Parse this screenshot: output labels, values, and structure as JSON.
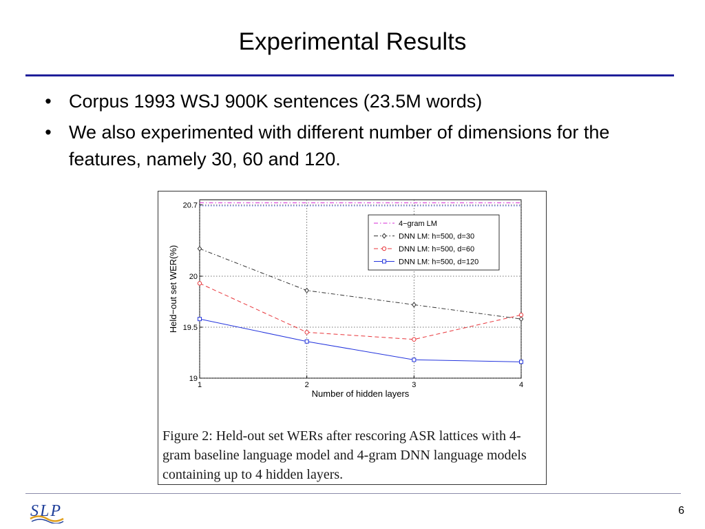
{
  "slide": {
    "title": "Experimental Results",
    "bullets": [
      "Corpus 1993 WSJ 900K sentences (23.5M words)",
      "We also experimented with different number of dimensions for the features, namely 30, 60 and 120."
    ],
    "bullet_symbol": "•",
    "page_number": "6",
    "logo_text": "SLP",
    "accent_color": "#1f1f9a"
  },
  "figure": {
    "caption": "Figure 2: Held-out set WERs after rescoring ASR lattices with 4-gram baseline language model and 4-gram DNN language models containing up to 4 hidden layers."
  },
  "chart_data": {
    "type": "line",
    "title": "",
    "xlabel": "Number of hidden layers",
    "ylabel": "Held−out set WER(%)",
    "xlim": [
      1,
      4
    ],
    "ylim": [
      19,
      20.75
    ],
    "x_ticks": [
      "1",
      "2",
      "3",
      "4"
    ],
    "y_ticks": [
      "19",
      "19.5",
      "20",
      "20.7"
    ],
    "y_tick_values": [
      19,
      19.5,
      20,
      20.7
    ],
    "grid": true,
    "legend_position": "top-right",
    "x": [
      1,
      2,
      3,
      4
    ],
    "series": [
      {
        "name": "4−gram LM",
        "values": [
          20.72,
          20.72,
          20.72,
          20.72
        ],
        "color": "#d42ad4",
        "dash": "dashdot",
        "marker": "none"
      },
      {
        "name": "DNN LM: h=500, d=30",
        "values": [
          20.27,
          19.86,
          19.72,
          19.58
        ],
        "color": "#333333",
        "dash": "dashdot",
        "marker": "diamond"
      },
      {
        "name": "DNN LM: h=500, d=60",
        "values": [
          19.93,
          19.45,
          19.38,
          19.62
        ],
        "color": "#e8353a",
        "dash": "dashed",
        "marker": "circle"
      },
      {
        "name": "DNN LM: h=500, d=120",
        "values": [
          19.58,
          19.36,
          19.18,
          19.16
        ],
        "color": "#2233dd",
        "dash": "solid",
        "marker": "square"
      }
    ]
  }
}
